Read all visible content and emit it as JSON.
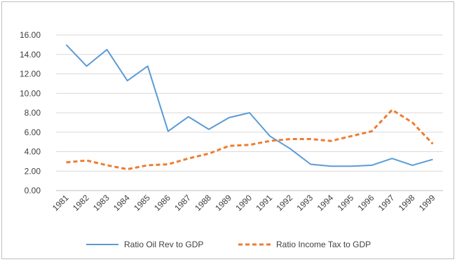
{
  "chart_data": {
    "type": "line",
    "title": "",
    "xlabel": "",
    "ylabel": "",
    "x": [
      "1981",
      "1982",
      "1983",
      "1984",
      "1985",
      "1986",
      "1987",
      "1988",
      "1989",
      "1990",
      "1991",
      "1992",
      "1993",
      "1994",
      "1995",
      "1996",
      "1997",
      "1998",
      "1999"
    ],
    "ylim": [
      0,
      16
    ],
    "yticks": [
      "0.00",
      "2.00",
      "4.00",
      "6.00",
      "8.00",
      "10.00",
      "12.00",
      "14.00",
      "16.00"
    ],
    "grid": true,
    "legend_position": "bottom",
    "series": [
      {
        "name": "Ratio Oil Rev to GDP",
        "color": "#5b9bd5",
        "style": "solid",
        "values": [
          15.0,
          12.8,
          14.5,
          11.3,
          12.8,
          6.1,
          7.6,
          6.3,
          7.5,
          8.0,
          5.6,
          4.3,
          2.7,
          2.5,
          2.5,
          2.6,
          3.3,
          2.6,
          3.2
        ]
      },
      {
        "name": "Ratio Income Tax to GDP",
        "color": "#ed7d31",
        "style": "dashed",
        "values": [
          2.9,
          3.1,
          2.6,
          2.2,
          2.6,
          2.7,
          3.3,
          3.8,
          4.6,
          4.7,
          5.1,
          5.3,
          5.3,
          5.1,
          5.6,
          6.1,
          8.3,
          7.0,
          4.8
        ]
      }
    ]
  }
}
